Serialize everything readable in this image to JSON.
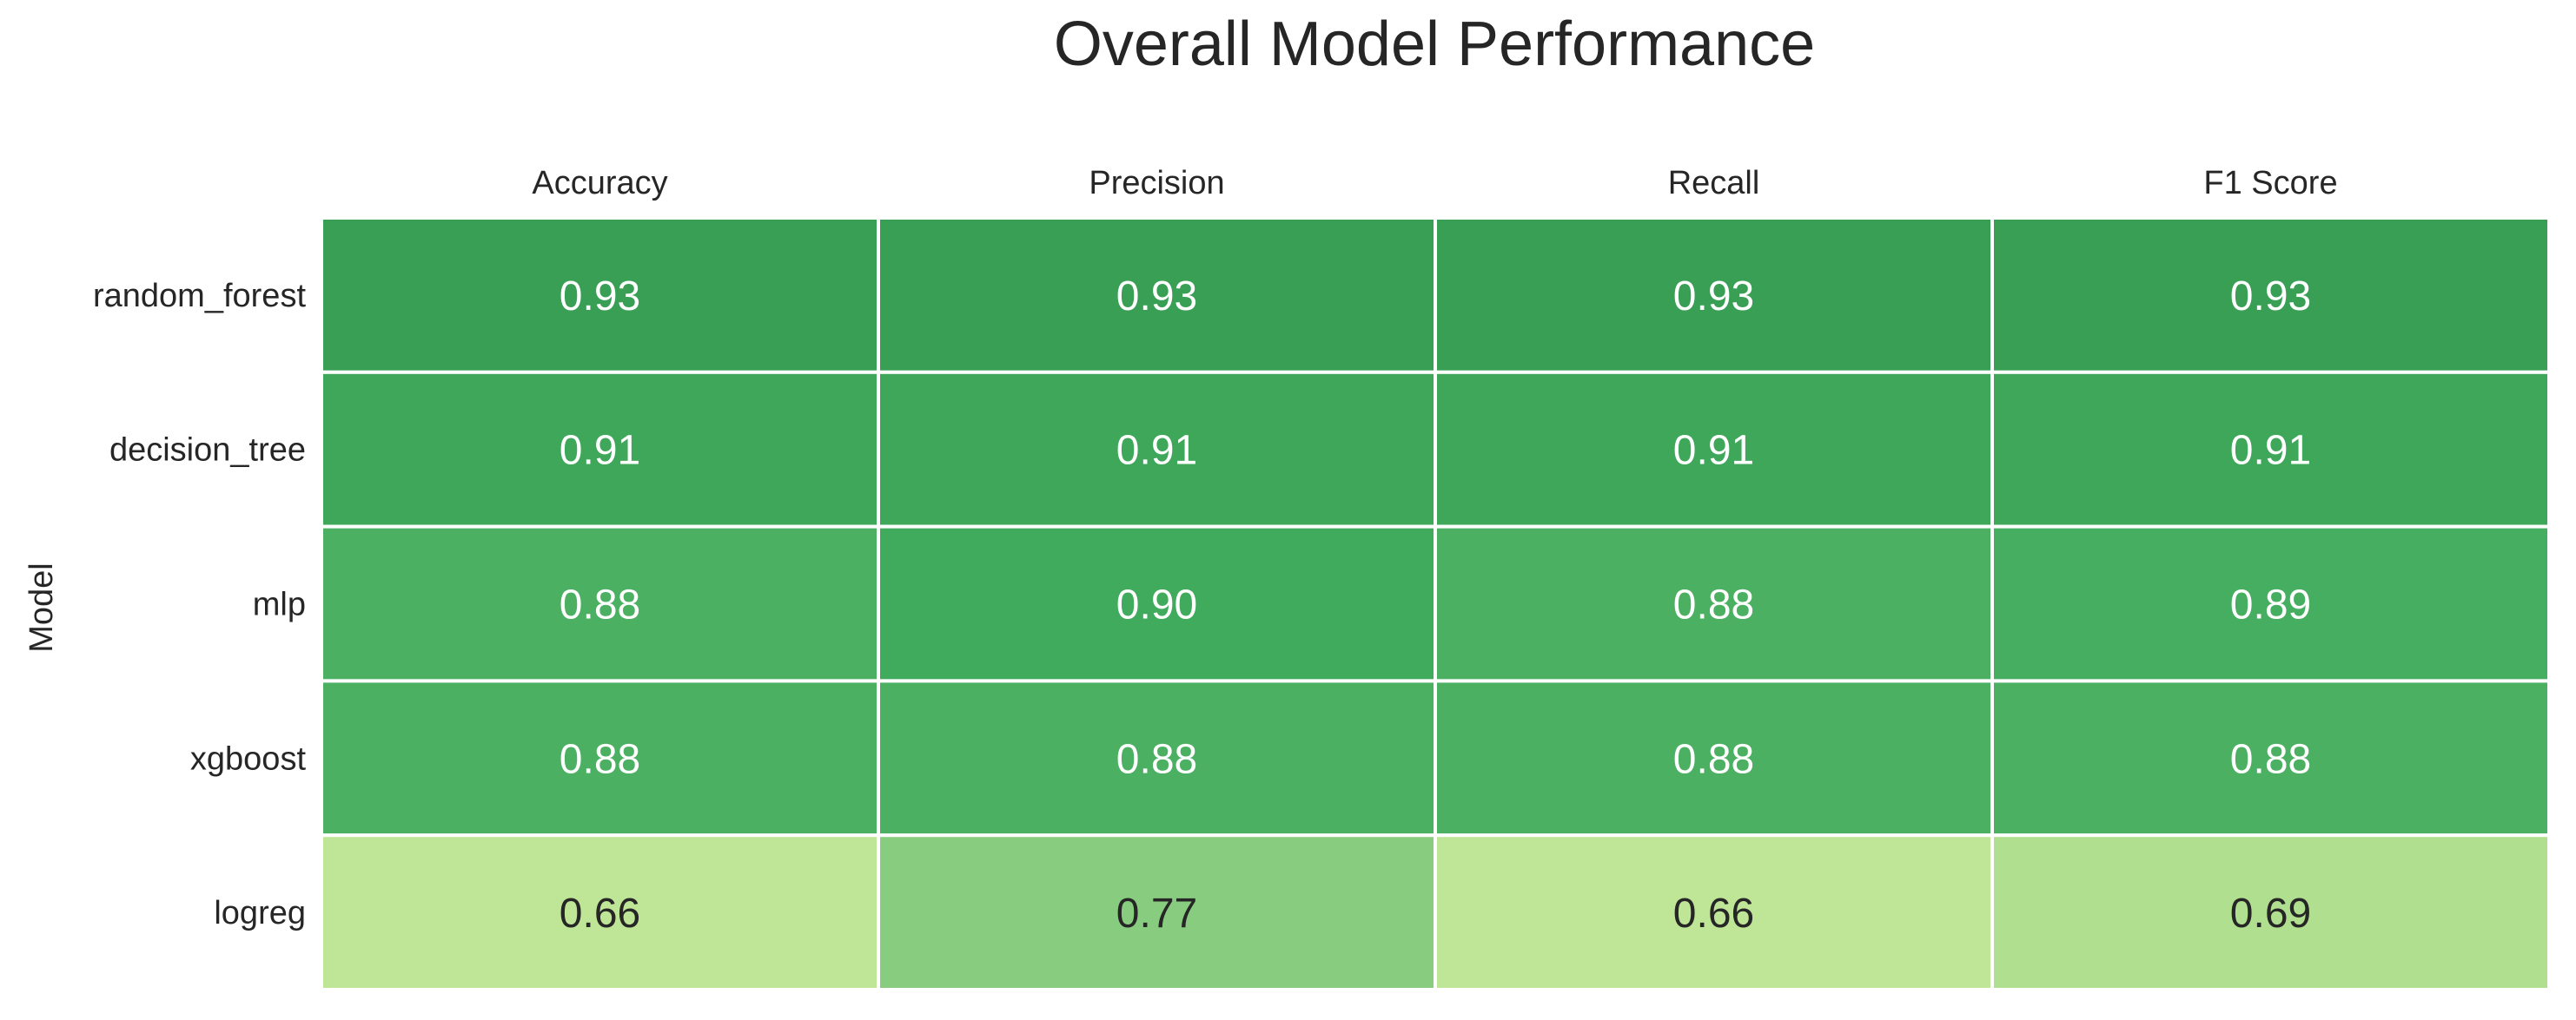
{
  "chart_data": {
    "type": "heatmap",
    "title": "Overall Model Performance",
    "ylabel": "Model",
    "xlabel": "",
    "columns": [
      "Accuracy",
      "Precision",
      "Recall",
      "F1 Score"
    ],
    "rows": [
      "random_forest",
      "decision_tree",
      "mlp",
      "xgboost",
      "logreg"
    ],
    "values": [
      [
        0.93,
        0.93,
        0.93,
        0.93
      ],
      [
        0.91,
        0.91,
        0.91,
        0.91
      ],
      [
        0.88,
        0.9,
        0.88,
        0.89
      ],
      [
        0.88,
        0.88,
        0.88,
        0.88
      ],
      [
        0.66,
        0.77,
        0.66,
        0.69
      ]
    ],
    "value_labels": [
      [
        "0.93",
        "0.93",
        "0.93",
        "0.93"
      ],
      [
        "0.91",
        "0.91",
        "0.91",
        "0.91"
      ],
      [
        "0.88",
        "0.90",
        "0.88",
        "0.89"
      ],
      [
        "0.88",
        "0.88",
        "0.88",
        "0.88"
      ],
      [
        "0.66",
        "0.77",
        "0.66",
        "0.69"
      ]
    ],
    "colormap": "YlGn",
    "colorbar": false,
    "grid": false,
    "x_tick_position": "top",
    "cell_border_color": "#ffffff"
  }
}
